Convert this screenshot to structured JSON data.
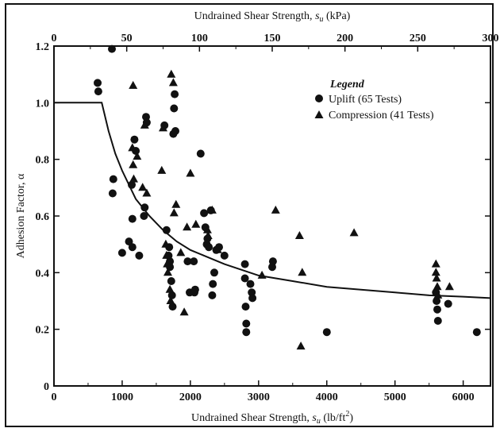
{
  "chart_data": {
    "type": "scatter",
    "xlabel": "Undrained Shear Strength, s_u (lb/ft²)",
    "xlabel_parts": {
      "main": "Undrained Shear Strength, ",
      "sym": "s",
      "sub": "u",
      "units": " (lb/ft",
      "sup": "2",
      "close": ")"
    },
    "x2label": "Undrained Shear Strength, s_u (kPa)",
    "x2label_parts": {
      "main": "Undrained Shear Strength, ",
      "sym": "s",
      "sub": "u",
      "units": " (kPa)"
    },
    "ylabel": "Adhesion Factor, α",
    "xlim": [
      0,
      6400
    ],
    "ylim": [
      0,
      1.2
    ],
    "x2lim": [
      0,
      300
    ],
    "xticks": [
      0,
      1000,
      2000,
      3000,
      4000,
      5000,
      6000
    ],
    "x2ticks": [
      0,
      50,
      100,
      150,
      200,
      250,
      300
    ],
    "yticks": [
      "0",
      "0.2",
      "0.4",
      "0.6",
      "0.8",
      "1.0",
      "1.2"
    ],
    "legend": {
      "title": "Legend",
      "placement": "top-right",
      "entries": [
        "Uplift (65 Tests)",
        "Compression (41 Tests)"
      ]
    },
    "series": [
      {
        "name": "Uplift (65 Tests)",
        "marker": "circle",
        "points": [
          [
            640,
            1.07
          ],
          [
            650,
            1.04
          ],
          [
            850,
            1.19
          ],
          [
            870,
            0.73
          ],
          [
            860,
            0.68
          ],
          [
            1000,
            0.47
          ],
          [
            1100,
            0.51
          ],
          [
            1150,
            0.49
          ],
          [
            1150,
            0.59
          ],
          [
            1180,
            0.87
          ],
          [
            1200,
            0.83
          ],
          [
            1250,
            0.46
          ],
          [
            1320,
            0.6
          ],
          [
            1330,
            0.63
          ],
          [
            1350,
            0.95
          ],
          [
            1360,
            0.93
          ],
          [
            1620,
            0.92
          ],
          [
            1650,
            0.55
          ],
          [
            1680,
            0.46
          ],
          [
            1700,
            0.42
          ],
          [
            1720,
            0.37
          ],
          [
            1730,
            0.32
          ],
          [
            1740,
            0.28
          ],
          [
            1750,
            0.89
          ],
          [
            1760,
            0.98
          ],
          [
            1770,
            1.03
          ],
          [
            1780,
            0.9
          ],
          [
            1960,
            0.44
          ],
          [
            1990,
            0.33
          ],
          [
            2050,
            0.44
          ],
          [
            2060,
            0.33
          ],
          [
            2070,
            0.34
          ],
          [
            2150,
            0.82
          ],
          [
            2200,
            0.61
          ],
          [
            2220,
            0.56
          ],
          [
            2240,
            0.5
          ],
          [
            2250,
            0.52
          ],
          [
            2270,
            0.49
          ],
          [
            2300,
            0.62
          ],
          [
            2320,
            0.32
          ],
          [
            2330,
            0.36
          ],
          [
            2350,
            0.4
          ],
          [
            2380,
            0.48
          ],
          [
            2420,
            0.49
          ],
          [
            2500,
            0.46
          ],
          [
            2800,
            0.43
          ],
          [
            2800,
            0.38
          ],
          [
            2810,
            0.28
          ],
          [
            2820,
            0.22
          ],
          [
            2820,
            0.19
          ],
          [
            2880,
            0.36
          ],
          [
            2900,
            0.33
          ],
          [
            2910,
            0.31
          ],
          [
            3200,
            0.42
          ],
          [
            3210,
            0.44
          ],
          [
            4000,
            0.19
          ],
          [
            5600,
            0.33
          ],
          [
            5610,
            0.3
          ],
          [
            5620,
            0.27
          ],
          [
            5630,
            0.23
          ],
          [
            5780,
            0.29
          ],
          [
            6200,
            0.19
          ],
          [
            1690,
            0.49
          ],
          [
            1700,
            0.44
          ],
          [
            1140,
            0.71
          ]
        ]
      },
      {
        "name": "Compression (41 Tests)",
        "marker": "triangle",
        "points": [
          [
            1160,
            1.06
          ],
          [
            1150,
            0.84
          ],
          [
            1160,
            0.78
          ],
          [
            1170,
            0.73
          ],
          [
            1220,
            0.81
          ],
          [
            1300,
            0.7
          ],
          [
            1330,
            0.92
          ],
          [
            1360,
            0.68
          ],
          [
            1580,
            0.76
          ],
          [
            1600,
            0.91
          ],
          [
            1640,
            0.5
          ],
          [
            1650,
            0.46
          ],
          [
            1660,
            0.43
          ],
          [
            1670,
            0.4
          ],
          [
            1700,
            0.34
          ],
          [
            1710,
            0.3
          ],
          [
            1720,
            1.1
          ],
          [
            1750,
            1.07
          ],
          [
            1760,
            0.61
          ],
          [
            1790,
            0.64
          ],
          [
            1860,
            0.47
          ],
          [
            1910,
            0.26
          ],
          [
            1950,
            0.56
          ],
          [
            2000,
            0.75
          ],
          [
            2080,
            0.57
          ],
          [
            2250,
            0.55
          ],
          [
            2260,
            0.53
          ],
          [
            2320,
            0.62
          ],
          [
            2400,
            0.48
          ],
          [
            3050,
            0.39
          ],
          [
            3250,
            0.62
          ],
          [
            3600,
            0.53
          ],
          [
            3620,
            0.14
          ],
          [
            3640,
            0.4
          ],
          [
            4400,
            0.54
          ],
          [
            5600,
            0.43
          ],
          [
            5600,
            0.4
          ],
          [
            5610,
            0.38
          ],
          [
            5620,
            0.35
          ],
          [
            5630,
            0.32
          ],
          [
            5800,
            0.35
          ]
        ]
      },
      {
        "name": "",
        "type": "line",
        "points": [
          [
            0,
            1.0
          ],
          [
            700,
            1.0
          ],
          [
            800,
            0.9
          ],
          [
            900,
            0.82
          ],
          [
            1000,
            0.76
          ],
          [
            1200,
            0.66
          ],
          [
            1400,
            0.6
          ],
          [
            1600,
            0.55
          ],
          [
            1800,
            0.51
          ],
          [
            2000,
            0.48
          ],
          [
            2200,
            0.46
          ],
          [
            2500,
            0.43
          ],
          [
            3000,
            0.39
          ],
          [
            3500,
            0.37
          ],
          [
            4000,
            0.35
          ],
          [
            4500,
            0.34
          ],
          [
            5000,
            0.33
          ],
          [
            5500,
            0.32
          ],
          [
            6000,
            0.315
          ],
          [
            6400,
            0.31
          ]
        ]
      }
    ]
  }
}
